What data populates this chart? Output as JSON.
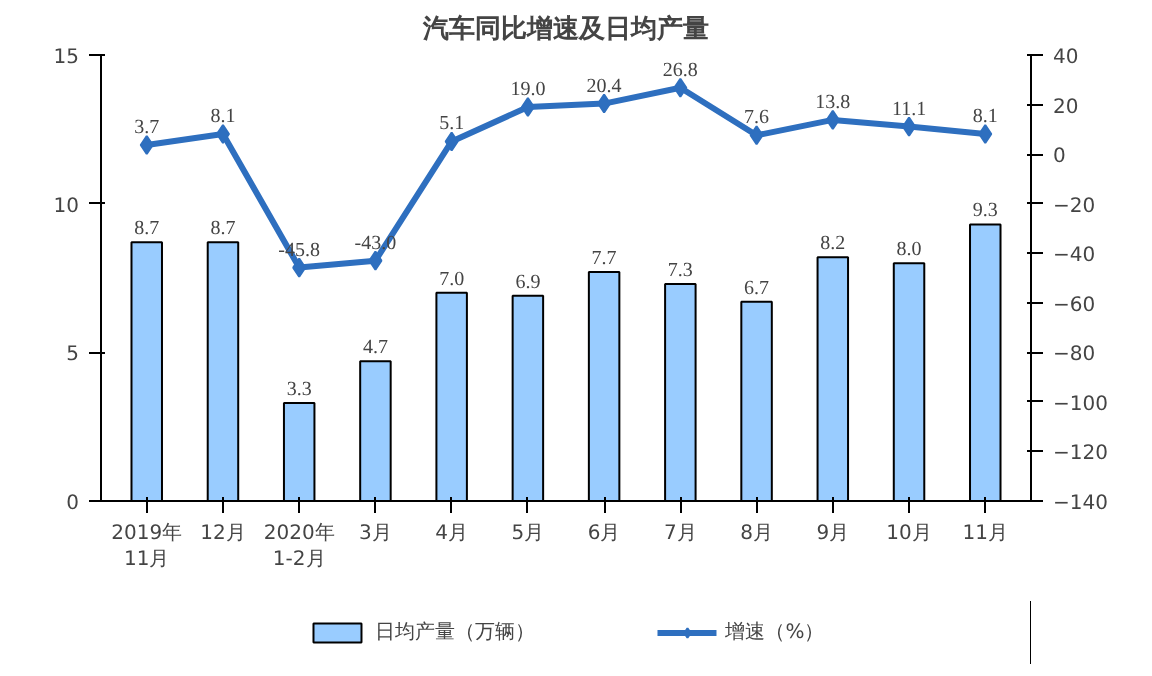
{
  "chart_data": {
    "type": "bar",
    "title": "汽车同比增速及日均产量",
    "categories": [
      "2019年\n11月",
      "12月",
      "2020年\n1-2月",
      "3月",
      "4月",
      "5月",
      "6月",
      "7月",
      "8月",
      "9月",
      "10月",
      "11月"
    ],
    "series": [
      {
        "name": "日均产量（万辆）",
        "color": "#99ccff",
        "values": [
          8.7,
          8.7,
          3.3,
          4.7,
          7.0,
          6.9,
          7.7,
          7.3,
          6.7,
          8.2,
          8.0,
          9.3
        ],
        "value_labels": [
          "8.7",
          "8.7",
          "3.3",
          "4.7",
          "7.0",
          "6.9",
          "7.7",
          "7.3",
          "6.7",
          "8.2",
          "8.0",
          "9.3"
        ]
      },
      {
        "name": "增速（%）",
        "type": "line",
        "axis": "y2",
        "color": "#2e6fbf",
        "marker": "diamond",
        "values": [
          3.7,
          8.1,
          -45.8,
          -43.0,
          5.1,
          19.0,
          20.4,
          26.8,
          7.6,
          13.8,
          11.1,
          8.1
        ],
        "value_labels": [
          "3.7",
          "8.1",
          "-45.8",
          "-43.0",
          "5.1",
          "19.0",
          "20.4",
          "26.8",
          "7.6",
          "13.8",
          "11.1",
          "8.1"
        ]
      }
    ],
    "ylim": [
      0,
      15
    ],
    "yticks": [
      0,
      5,
      10,
      15
    ],
    "y2lim": [
      -140,
      40
    ],
    "y2ticks": [
      -140,
      -120,
      -100,
      -80,
      -60,
      -40,
      -20,
      0,
      20,
      40
    ],
    "grid": false,
    "legend": "bottom"
  }
}
